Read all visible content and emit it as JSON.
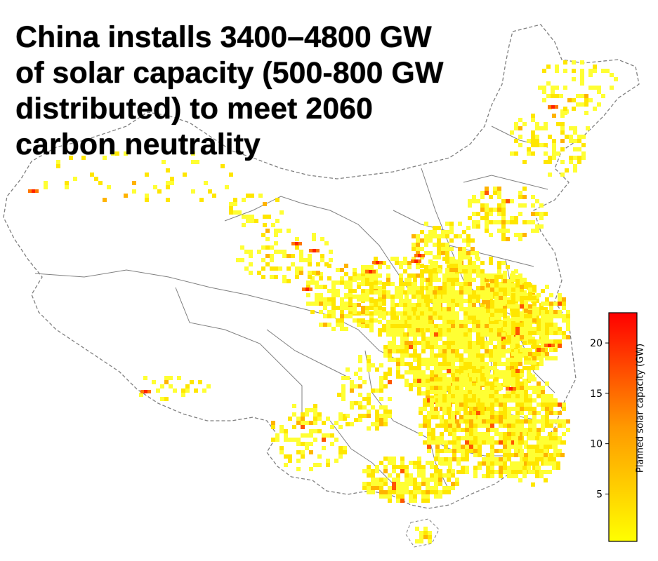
{
  "headline": {
    "line1": "China installs 3400–4800 GW",
    "line2": "of solar capacity (500-800 GW",
    "line3": "distributed) to meet 2060",
    "line4": "carbon neutrality"
  },
  "colorbar": {
    "label": "Planned solar capacity (GW)",
    "ticks": [
      "5",
      "10",
      "15",
      "20"
    ],
    "tick_values": [
      5,
      10,
      15,
      20
    ],
    "min": 0.3,
    "max": 23,
    "color_low": "#ffff00",
    "color_mid": "#ff9900",
    "color_high": "#ff0000"
  },
  "legend_colors": {
    "boundary": "#808080",
    "background": "#ffffff"
  }
}
